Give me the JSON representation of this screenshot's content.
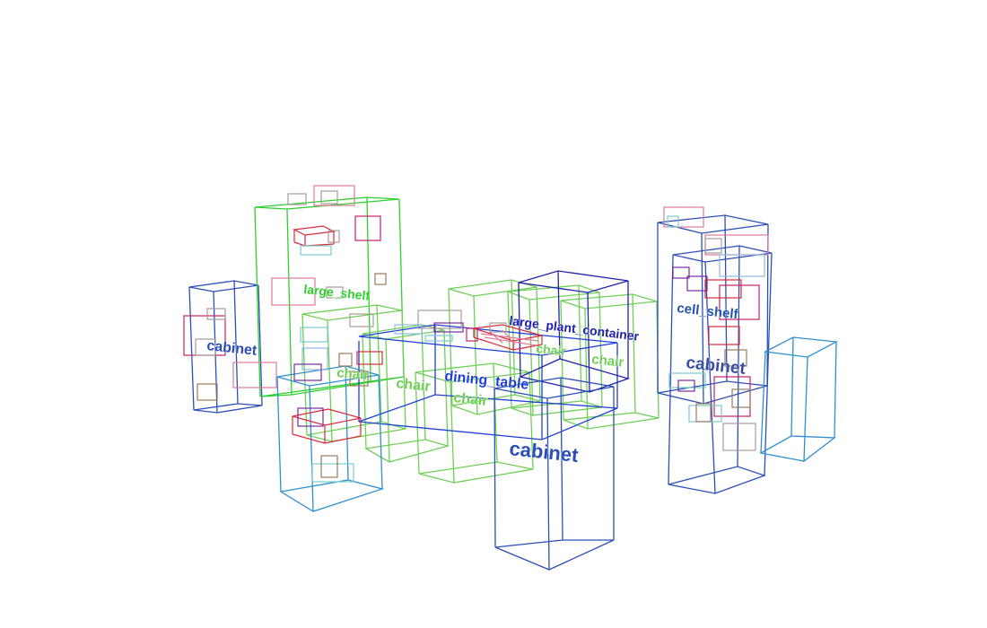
{
  "diagram": {
    "colors": {
      "cabinet": "#2b4fb6",
      "cabinet_light": "#2f8fd0",
      "large_shelf": "#2fcf2f",
      "chair": "#6fcf55",
      "dining_table": "#1f3fd6",
      "large_plant_container": "#2222aa",
      "cell_shelf": "#2255aa",
      "small_red": "#d92b3a",
      "small_pink": "#e07a9a",
      "small_magenta": "#c8206a",
      "small_cyan": "#79cccc",
      "small_gray": "#a89a9a",
      "small_purple": "#7a2aa0",
      "small_brown": "#9a7a5a"
    },
    "labels": {
      "cabinet_left": "cabinet",
      "large_shelf": "large_shelf",
      "chair_1": "chair",
      "chair_2": "chair",
      "chair_3": "chair",
      "chair_4": "chair",
      "chair_5": "chair",
      "dining_table": "dining_table",
      "large_plant_container": "large_plant_container",
      "cabinet_center": "cabinet",
      "cell_shelf": "cell_shelf",
      "cabinet_right": "cabinet"
    }
  }
}
